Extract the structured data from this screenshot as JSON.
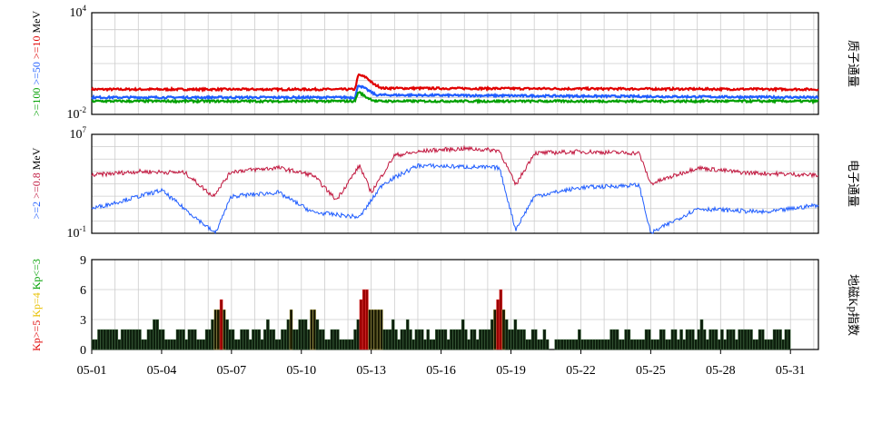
{
  "chart_data": [
    {
      "type": "line",
      "title": "",
      "right_label": "质子通量",
      "ylabel_parts": [
        {
          "text": ">=100",
          "color": "#00a000"
        },
        {
          "text": " >=50",
          "color": "#1e5cff"
        },
        {
          "text": " >=10",
          "color": "#e00000"
        },
        {
          "text": " MeV",
          "color": "#000000"
        }
      ],
      "y_scale": "log",
      "ylim_exp": [
        -2,
        4
      ],
      "ytick_labels": [
        {
          "base": "10",
          "exp": "4"
        },
        {
          "base": "10",
          "exp": "-2"
        }
      ],
      "x_range_days": [
        1,
        32.2
      ],
      "series": [
        {
          "color": "#e00000",
          "points": [
            [
              1,
              0.3
            ],
            [
              12.3,
              0.3
            ],
            [
              12.45,
              2.2
            ],
            [
              12.8,
              1.5
            ],
            [
              13.1,
              0.6
            ],
            [
              13.5,
              0.35
            ],
            [
              32.2,
              0.3
            ]
          ]
        },
        {
          "color": "#1e5cff",
          "points": [
            [
              1,
              0.1
            ],
            [
              12.3,
              0.1
            ],
            [
              12.45,
              0.55
            ],
            [
              12.8,
              0.3
            ],
            [
              13.2,
              0.14
            ],
            [
              32.2,
              0.1
            ]
          ]
        },
        {
          "color": "#00a000",
          "points": [
            [
              1,
              0.06
            ],
            [
              12.3,
              0.06
            ],
            [
              12.45,
              0.22
            ],
            [
              12.8,
              0.1
            ],
            [
              13.2,
              0.06
            ],
            [
              32.2,
              0.06
            ]
          ]
        }
      ]
    },
    {
      "type": "line",
      "title": "",
      "right_label": "电子通量",
      "ylabel_parts": [
        {
          "text": ">=2",
          "color": "#1e5cff"
        },
        {
          "text": " >=0.8",
          "color": "#c0143c"
        },
        {
          "text": " MeV",
          "color": "#000000"
        }
      ],
      "y_scale": "log",
      "ylim_exp": [
        -1,
        7
      ],
      "ytick_labels": [
        {
          "base": "10",
          "exp": "7"
        },
        {
          "base": "10",
          "exp": "-1"
        }
      ],
      "x_range_days": [
        1,
        32.2
      ],
      "series": [
        {
          "color": "#c0143c",
          "points": [
            [
              1,
              5000
            ],
            [
              3,
              10000
            ],
            [
              5,
              8000
            ],
            [
              6.2,
              100
            ],
            [
              7,
              10000
            ],
            [
              9,
              20000
            ],
            [
              10.5,
              5000
            ],
            [
              11.5,
              50
            ],
            [
              12.5,
              30000
            ],
            [
              13,
              200
            ],
            [
              14,
              200000
            ],
            [
              15.5,
              500000
            ],
            [
              17,
              700000
            ],
            [
              18.5,
              500000
            ],
            [
              19.2,
              800
            ],
            [
              20,
              300000
            ],
            [
              22,
              400000
            ],
            [
              24.5,
              300000
            ],
            [
              25,
              1000
            ],
            [
              27,
              20000
            ],
            [
              29,
              8000
            ],
            [
              32.2,
              5000
            ]
          ]
        },
        {
          "color": "#1e5cff",
          "points": [
            [
              1,
              10
            ],
            [
              2,
              30
            ],
            [
              4,
              300
            ],
            [
              6.3,
              0.1
            ],
            [
              7,
              100
            ],
            [
              9,
              200
            ],
            [
              10.5,
              5
            ],
            [
              12.5,
              2
            ],
            [
              13.5,
              1000
            ],
            [
              15,
              30000
            ],
            [
              18.5,
              20000
            ],
            [
              19.2,
              0.2
            ],
            [
              20,
              100
            ],
            [
              22,
              500
            ],
            [
              24.5,
              800
            ],
            [
              25,
              0.1
            ],
            [
              27,
              10
            ],
            [
              30,
              5
            ],
            [
              32.2,
              20
            ]
          ]
        }
      ]
    },
    {
      "type": "bar",
      "title": "",
      "right_label": "地磁Kp指数",
      "ylabel_parts": [
        {
          "text": "Kp>=5",
          "color": "#e00000"
        },
        {
          "text": " Kp=4",
          "color": "#e8c000"
        },
        {
          "text": " Kp<=3",
          "color": "#00a000"
        }
      ],
      "ylim": [
        0,
        9
      ],
      "yticks": [
        0,
        3,
        6,
        9
      ],
      "x_range_days": [
        1,
        32.2
      ],
      "xtick_labels": [
        "05-01",
        "05-04",
        "05-07",
        "05-10",
        "05-13",
        "05-16",
        "05-19",
        "05-22",
        "05-25",
        "05-28",
        "05-31"
      ],
      "xtick_days": [
        1,
        4,
        7,
        10,
        13,
        16,
        19,
        22,
        25,
        28,
        31
      ],
      "bar_width_days": 0.125,
      "kp": [
        1,
        1,
        2,
        2,
        2,
        2,
        2,
        2,
        2,
        1,
        2,
        2,
        2,
        2,
        2,
        2,
        2,
        1,
        1,
        2,
        2,
        3,
        3,
        2,
        2,
        1,
        1,
        1,
        1,
        2,
        2,
        2,
        1,
        2,
        2,
        2,
        1,
        1,
        1,
        2,
        2,
        3,
        4,
        4,
        5,
        4,
        3,
        2,
        2,
        1,
        1,
        2,
        2,
        2,
        1,
        2,
        2,
        2,
        1,
        2,
        3,
        2,
        2,
        1,
        1,
        2,
        2,
        3,
        4,
        2,
        2,
        3,
        3,
        3,
        2,
        4,
        4,
        3,
        2,
        2,
        1,
        1,
        2,
        2,
        2,
        1,
        1,
        1,
        1,
        1,
        2,
        3,
        5,
        6,
        6,
        4,
        4,
        4,
        4,
        4,
        2,
        2,
        2,
        3,
        2,
        1,
        2,
        2,
        3,
        2,
        1,
        2,
        2,
        2,
        1,
        2,
        1,
        1,
        2,
        2,
        2,
        2,
        1,
        2,
        2,
        2,
        2,
        3,
        2,
        1,
        2,
        2,
        1,
        2,
        2,
        2,
        2,
        3,
        4,
        5,
        6,
        4,
        3,
        2,
        2,
        3,
        2,
        2,
        2,
        1,
        1,
        2,
        2,
        1,
        1,
        2,
        1,
        0,
        0,
        1,
        1,
        1,
        1,
        1,
        1,
        1,
        1,
        2,
        1,
        1,
        1,
        1,
        1,
        1,
        1,
        1,
        1,
        1,
        2,
        2,
        2,
        1,
        1,
        2,
        2,
        1,
        1,
        1,
        1,
        1,
        2,
        2,
        1,
        1,
        1,
        2,
        2,
        1,
        1,
        2,
        2,
        1,
        2,
        1,
        2,
        2,
        2,
        1,
        2,
        3,
        2,
        1,
        2,
        2,
        2,
        1,
        2,
        1,
        2,
        2,
        2,
        1,
        2,
        2,
        2,
        2,
        2,
        1,
        1,
        2,
        2,
        1,
        1,
        1,
        2,
        2,
        2,
        1,
        2,
        2
      ]
    }
  ]
}
